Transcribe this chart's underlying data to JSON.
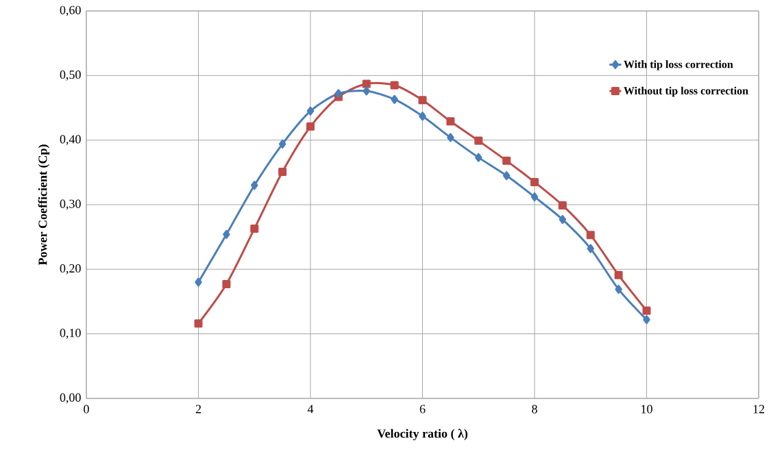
{
  "chart_data": {
    "type": "line",
    "xlabel": "Velocity ratio ( λ)",
    "ylabel": "Power Coefficient (Cp)",
    "x": [
      2,
      2.5,
      3,
      3.5,
      4,
      4.5,
      5,
      5.5,
      6,
      6.5,
      7,
      7.5,
      8,
      8.5,
      9,
      9.5,
      10
    ],
    "series": [
      {
        "name": "With tip loss correction",
        "color": "#4a7ebb",
        "marker": "diamond",
        "values": [
          0.18,
          0.254,
          0.33,
          0.394,
          0.445,
          0.472,
          0.476,
          0.463,
          0.437,
          0.404,
          0.373,
          0.345,
          0.312,
          0.277,
          0.232,
          0.169,
          0.122
        ]
      },
      {
        "name": "Without tip loss correction",
        "color": "#be4b48",
        "marker": "square",
        "values": [
          0.116,
          0.177,
          0.263,
          0.351,
          0.421,
          0.467,
          0.487,
          0.485,
          0.462,
          0.429,
          0.399,
          0.368,
          0.335,
          0.299,
          0.253,
          0.191,
          0.136
        ]
      }
    ],
    "xlim": [
      0,
      12
    ],
    "xticks": [
      0,
      2,
      4,
      6,
      8,
      10,
      12
    ],
    "ylim": [
      0,
      0.6
    ],
    "yticks": [
      {
        "value": 0,
        "label": "0,00"
      },
      {
        "value": 0.1,
        "label": "0,10"
      },
      {
        "value": 0.2,
        "label": "0,20"
      },
      {
        "value": 0.3,
        "label": "0,30"
      },
      {
        "value": 0.4,
        "label": "0,40"
      },
      {
        "value": 0.5,
        "label": "0,50"
      },
      {
        "value": 0.6,
        "label": "0,60"
      }
    ],
    "grid": true,
    "legend": "top right",
    "line_style": "solid"
  }
}
